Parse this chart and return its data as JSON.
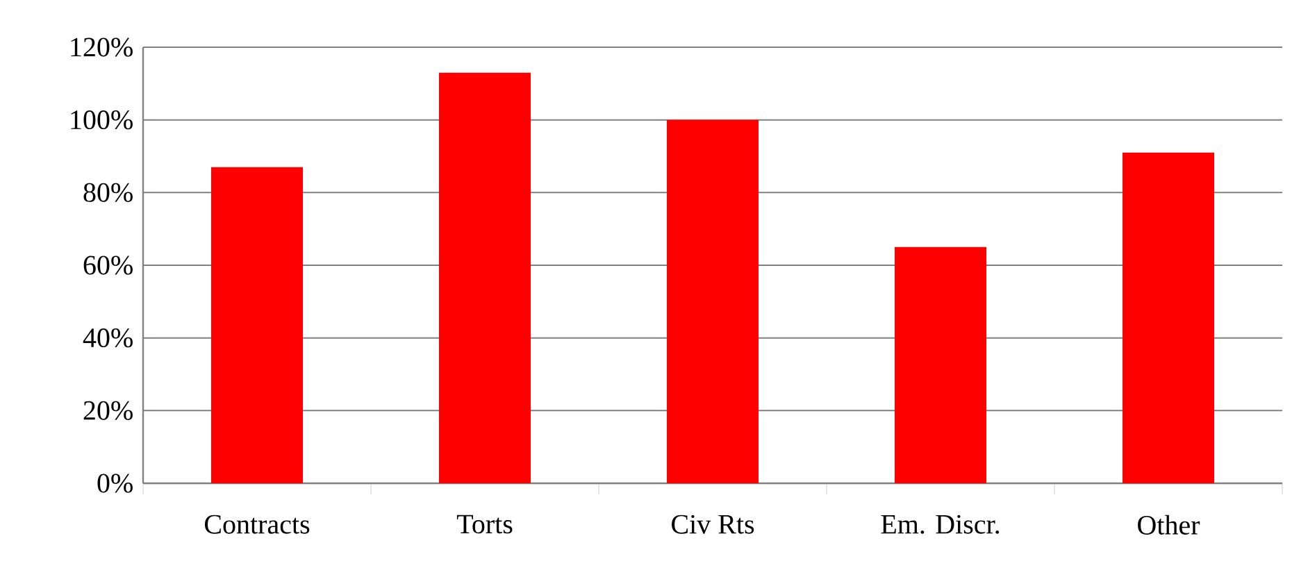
{
  "chart_data": {
    "type": "bar",
    "categories": [
      "Contracts",
      "Torts",
      "Civ Rts",
      "Em. Discr.",
      "Other"
    ],
    "values": [
      87,
      113,
      100,
      65,
      91
    ],
    "color": "#ff0000",
    "ylim": [
      0,
      120
    ],
    "yticks": [
      {
        "value": 0,
        "label": "0%"
      },
      {
        "value": 20,
        "label": "20%"
      },
      {
        "value": 40,
        "label": "40%"
      },
      {
        "value": 60,
        "label": "60%"
      },
      {
        "value": 80,
        "label": "80%"
      },
      {
        "value": 100,
        "label": "100%"
      },
      {
        "value": 120,
        "label": "120%"
      }
    ],
    "grid": "y"
  }
}
